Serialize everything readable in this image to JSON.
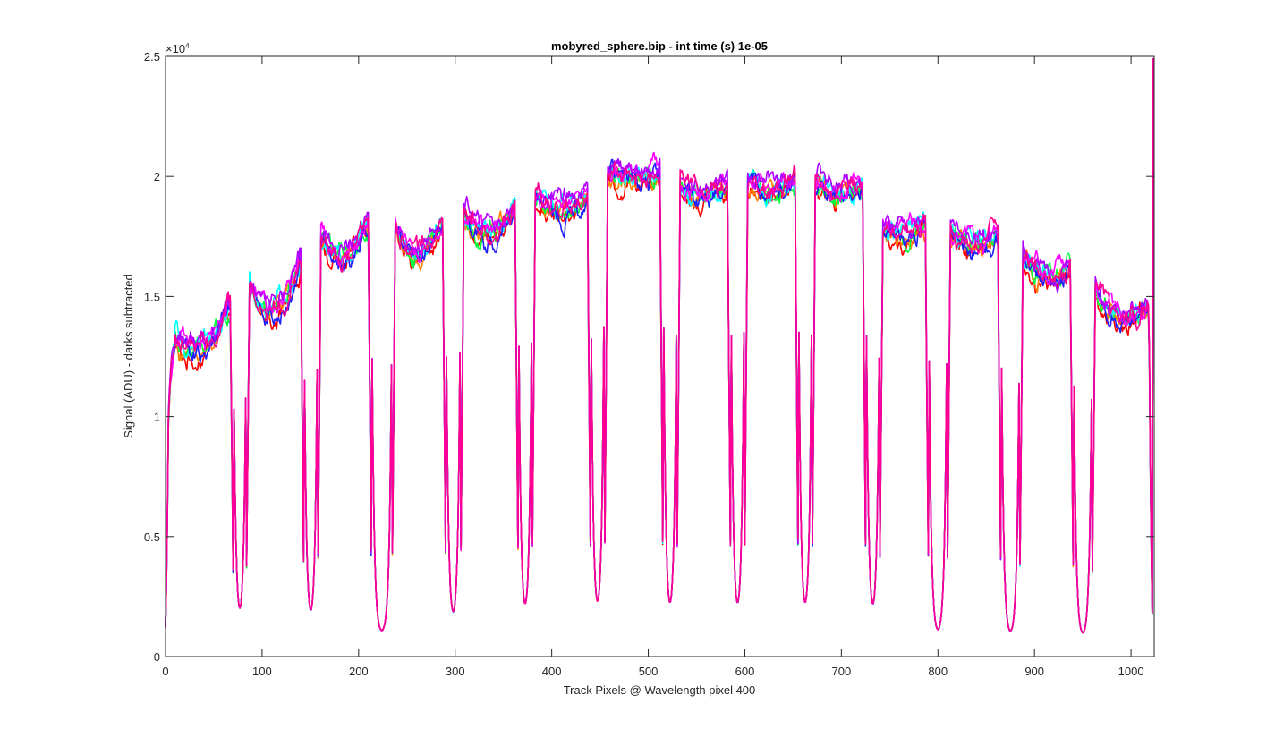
{
  "chart_data": {
    "type": "line",
    "title": "mobyred_sphere.bip - int time (s) 1e-05",
    "xlabel": "Track Pixels @ Wavelength pixel 400",
    "ylabel": "Signal (ADU) - darks subtracted",
    "y_exponent_label": "×10",
    "y_exponent": "4",
    "xlim": [
      0,
      1024
    ],
    "ylim": [
      0,
      25000
    ],
    "xticks": [
      0,
      100,
      200,
      300,
      400,
      500,
      600,
      700,
      800,
      900,
      1000
    ],
    "xtick_labels": [
      "0",
      "100",
      "200",
      "300",
      "400",
      "500",
      "600",
      "700",
      "800",
      "900",
      "1000"
    ],
    "yticks": [
      0,
      5000,
      10000,
      15000,
      20000,
      25000
    ],
    "ytick_labels": [
      "0",
      "0.5",
      "1",
      "1.5",
      "2",
      "2.5"
    ],
    "grid": false,
    "legend": "none",
    "box": true,
    "segments": [
      {
        "x_start": 0,
        "x_end": 70,
        "y_start": 13800,
        "y_end": 15000,
        "y_mid": 13000
      },
      {
        "x_start": 84,
        "x_end": 143,
        "y_start": 15700,
        "y_end": 16800,
        "y_mid": 14700
      },
      {
        "x_start": 158,
        "x_end": 213,
        "y_start": 17500,
        "y_end": 18200,
        "y_mid": 16700
      },
      {
        "x_start": 235,
        "x_end": 290,
        "y_start": 17800,
        "y_end": 18200,
        "y_mid": 16800
      },
      {
        "x_start": 306,
        "x_end": 365,
        "y_start": 18500,
        "y_end": 18800,
        "y_mid": 17600
      },
      {
        "x_start": 380,
        "x_end": 440,
        "y_start": 19000,
        "y_end": 19200,
        "y_mid": 18500
      },
      {
        "x_start": 455,
        "x_end": 515,
        "y_start": 20000,
        "y_end": 20000,
        "y_mid": 19800
      },
      {
        "x_start": 530,
        "x_end": 585,
        "y_start": 19500,
        "y_end": 19500,
        "y_mid": 19100
      },
      {
        "x_start": 600,
        "x_end": 655,
        "y_start": 19700,
        "y_end": 19700,
        "y_mid": 19300
      },
      {
        "x_start": 670,
        "x_end": 725,
        "y_start": 19500,
        "y_end": 19500,
        "y_mid": 19200
      },
      {
        "x_start": 740,
        "x_end": 790,
        "y_start": 18000,
        "y_end": 18200,
        "y_mid": 17700
      },
      {
        "x_start": 810,
        "x_end": 865,
        "y_start": 18000,
        "y_end": 17800,
        "y_mid": 17300
      },
      {
        "x_start": 885,
        "x_end": 940,
        "y_start": 16800,
        "y_end": 16700,
        "y_mid": 16000
      },
      {
        "x_start": 960,
        "x_end": 1022,
        "y_start": 15800,
        "y_end": 15000,
        "y_mid": 14400
      }
    ],
    "gap_minima": [
      750,
      800,
      850,
      900,
      950,
      1000,
      950,
      950,
      950,
      950,
      750,
      700,
      650,
      600
    ],
    "series": [
      {
        "color": "#ff0000",
        "offset": -500
      },
      {
        "color": "#ff8000",
        "offset": -300
      },
      {
        "color": "#00ff40",
        "offset": -200
      },
      {
        "color": "#00ffff",
        "offset": 0
      },
      {
        "color": "#2020ff",
        "offset": -300
      },
      {
        "color": "#ff00ff",
        "offset": 200
      },
      {
        "color": "#b000ff",
        "offset": 400
      },
      {
        "color": "#ff0090",
        "offset": 100
      }
    ]
  }
}
